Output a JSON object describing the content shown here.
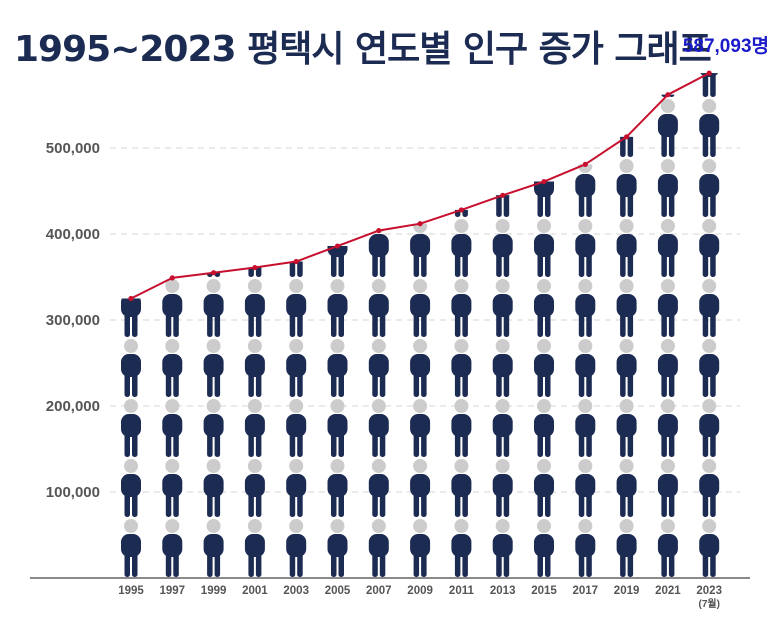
{
  "chart_data": {
    "type": "bar",
    "style": "pictograph-with-line",
    "title": "1995~2023 평택시 연도별 인구 증가 그래프",
    "callout": "587,093명",
    "categories": [
      "1995",
      "1997",
      "1999",
      "2001",
      "2003",
      "2005",
      "2007",
      "2009",
      "2011",
      "2013",
      "2015",
      "2017",
      "2019",
      "2021",
      "2023"
    ],
    "category_sublabels": [
      "",
      "",
      "",
      "",
      "",
      "",
      "",
      "",
      "",
      "",
      "",
      "",
      "",
      "",
      "(7월)"
    ],
    "values": [
      325000,
      349000,
      355000,
      361000,
      368000,
      386000,
      404000,
      412000,
      428000,
      445000,
      461000,
      481000,
      513000,
      562000,
      587093
    ],
    "y_ticks": [
      100000,
      200000,
      300000,
      400000,
      500000
    ],
    "y_tick_labels": [
      "100,000",
      "200,000",
      "300,000",
      "400,000",
      "500,000"
    ],
    "ylim": [
      0,
      587093
    ],
    "xlabel": "",
    "ylabel": "",
    "grid": true,
    "colors": {
      "figure": "#1c2b52",
      "head": "#cccccc",
      "line": "#c8102e",
      "callout": "#1a1ac8",
      "title": "#1c2b52",
      "axis_text": "#555555",
      "grid": "#d6d6d6",
      "axis": "#444444"
    }
  }
}
